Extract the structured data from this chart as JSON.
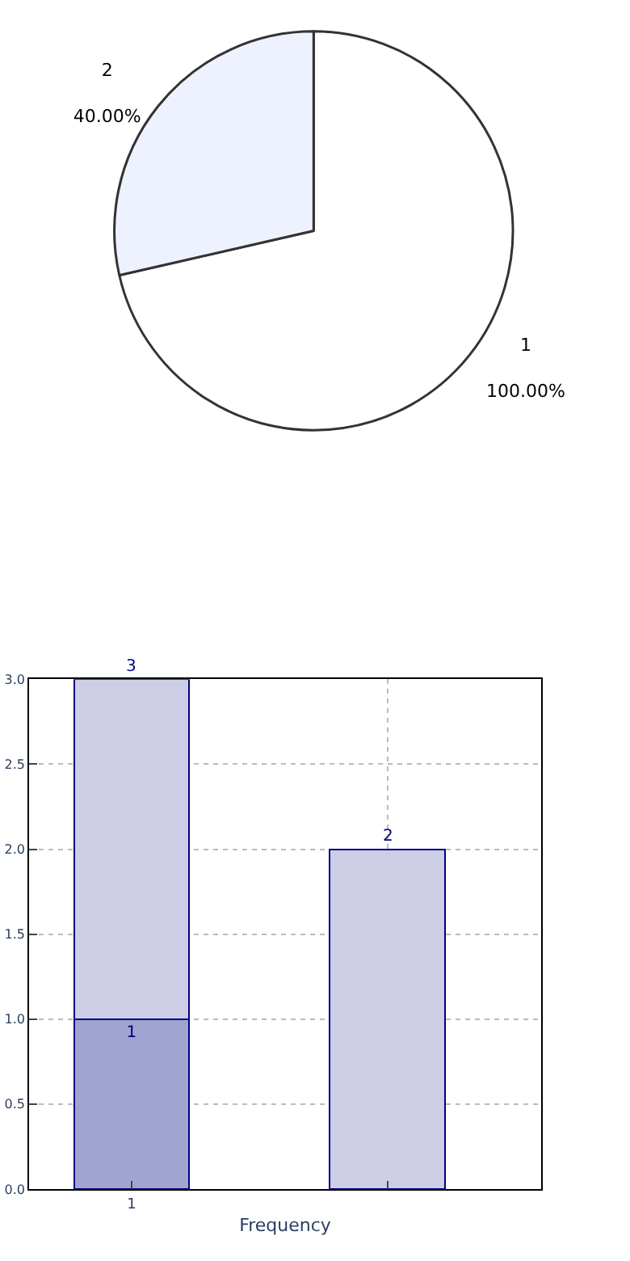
{
  "chart_data": [
    {
      "type": "pie",
      "categories": [
        "1",
        "2"
      ],
      "values": [
        100,
        40
      ],
      "value_labels": [
        "100.00%",
        "40.00%"
      ],
      "colors": [
        "#ffffff",
        "#eef2ff"
      ]
    },
    {
      "type": "bar",
      "stacked": true,
      "categories": [
        "1",
        null
      ],
      "xlabel": "Frequency",
      "series": [
        {
          "color": "#a2a4d0",
          "values": [
            1,
            null
          ],
          "value_labels": [
            "1",
            null
          ]
        },
        {
          "color": "#cdcde5",
          "values": [
            2,
            2
          ]
        }
      ],
      "totals": [
        "3",
        "2"
      ],
      "ylim": [
        0,
        3
      ],
      "yticks": [
        {
          "value": 0,
          "label": "0.0"
        },
        {
          "value": 0.5,
          "label": "0.5"
        },
        {
          "value": 1,
          "label": "1.0"
        },
        {
          "value": 1.5,
          "label": "1.5"
        },
        {
          "value": 2,
          "label": "2.0"
        },
        {
          "value": 2.5,
          "label": "2.5"
        },
        {
          "value": 3,
          "label": "3.0"
        }
      ],
      "grid": true,
      "line_style": "dotted"
    }
  ]
}
